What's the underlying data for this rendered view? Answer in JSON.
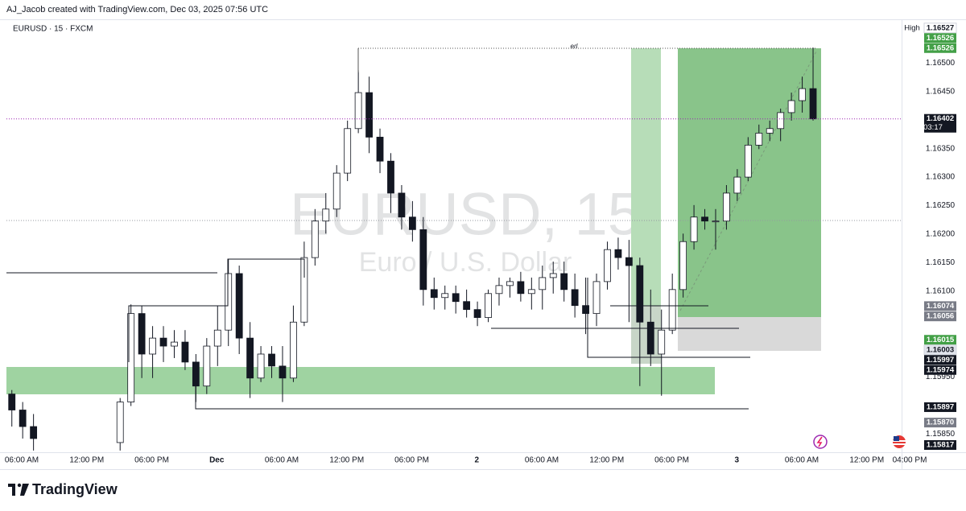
{
  "header": {
    "title": "AJ_Jacob created with TradingView.com, Dec 03, 2025 07:56 UTC"
  },
  "footer": {
    "brand": "TradingView"
  },
  "chart_data": {
    "type": "candlestick",
    "symbol": "EURUSD · 15 · FXCM",
    "watermark": "EURUSD, 15",
    "watermark_subtitle": "Euro / U.S. Dollar",
    "annotation": "erl",
    "up_color": "#ffffff",
    "down_color": "#131722",
    "ylim": [
      1.15818,
      1.16575
    ],
    "yticks": [
      {
        "value": 1.1585,
        "label": "1.15850"
      },
      {
        "value": 1.1595,
        "label": "1.15950"
      },
      {
        "value": 1.161,
        "label": "1.16100"
      },
      {
        "value": 1.1615,
        "label": "1.16150"
      },
      {
        "value": 1.162,
        "label": "1.16200"
      },
      {
        "value": 1.1625,
        "label": "1.16250"
      },
      {
        "value": 1.163,
        "label": "1.16300"
      },
      {
        "value": 1.1635,
        "label": "1.16350"
      },
      {
        "value": 1.1645,
        "label": "1.16450"
      },
      {
        "value": 1.165,
        "label": "1.16500"
      }
    ],
    "x_axis_labels": [
      "06:00 AM",
      "12:00 PM",
      "06:00 PM",
      "Dec",
      "06:00 AM",
      "12:00 PM",
      "06:00 PM",
      "2",
      "06:00 AM",
      "12:00 PM",
      "06:00 PM",
      "3",
      "06:00 AM",
      "12:00 PM",
      "04:00 PM"
    ],
    "candles": [
      [
        1.1592,
        1.15927,
        1.15863,
        1.15892
      ],
      [
        1.15892,
        1.15906,
        1.15842,
        1.15863
      ],
      [
        1.15863,
        1.15885,
        1.15821,
        1.15842
      ],
      null,
      null,
      null,
      null,
      null,
      null,
      null,
      [
        1.15835,
        1.15913,
        1.15821,
        1.15906
      ],
      [
        1.15906,
        1.16077,
        1.15899,
        1.16061
      ],
      [
        1.16061,
        1.16075,
        1.15948,
        1.1599
      ],
      [
        1.1599,
        1.16039,
        1.15948,
        1.16018
      ],
      [
        1.16018,
        1.16039,
        1.15976,
        1.16004
      ],
      [
        1.16004,
        1.16032,
        1.15983,
        1.16011
      ],
      [
        1.16011,
        1.16032,
        1.15962,
        1.15976
      ],
      [
        1.15976,
        1.1599,
        1.15906,
        1.15934
      ],
      [
        1.15934,
        1.16018,
        1.1592,
        1.16004
      ],
      [
        1.16004,
        1.16075,
        1.15969,
        1.16032
      ],
      [
        1.16032,
        1.16156,
        1.16004,
        1.16131
      ],
      [
        1.16131,
        1.16145,
        1.1599,
        1.16018
      ],
      [
        1.16018,
        1.16046,
        1.15913,
        1.15948
      ],
      [
        1.15948,
        1.16004,
        1.15941,
        1.1599
      ],
      [
        1.1599,
        1.16004,
        1.15948,
        1.15969
      ],
      [
        1.15969,
        1.16004,
        1.15906,
        1.15948
      ],
      [
        1.15948,
        1.16075,
        1.15941,
        1.16046
      ],
      [
        1.16046,
        1.16187,
        1.16039,
        1.16159
      ],
      [
        1.16159,
        1.16244,
        1.16145,
        1.16223
      ],
      [
        1.16223,
        1.16272,
        1.16201,
        1.16244
      ],
      [
        1.16244,
        1.16321,
        1.1623,
        1.16307
      ],
      [
        1.16307,
        1.16399,
        1.16293,
        1.16385
      ],
      [
        1.16385,
        1.16487,
        1.16377,
        1.16448
      ],
      [
        1.16448,
        1.16476,
        1.16342,
        1.1637
      ],
      [
        1.1637,
        1.16385,
        1.16307,
        1.16328
      ],
      [
        1.16328,
        1.16342,
        1.16237,
        1.16272
      ],
      [
        1.16272,
        1.16286,
        1.16208,
        1.1623
      ],
      [
        1.1623,
        1.16258,
        1.16187,
        1.16208
      ],
      [
        1.16208,
        1.1623,
        1.16075,
        1.16103
      ],
      [
        1.16103,
        1.16124,
        1.16068,
        1.16089
      ],
      [
        1.16089,
        1.1611,
        1.16068,
        1.16096
      ],
      [
        1.16096,
        1.1611,
        1.16061,
        1.16082
      ],
      [
        1.16082,
        1.16103,
        1.16054,
        1.16068
      ],
      [
        1.16068,
        1.16082,
        1.16039,
        1.16054
      ],
      [
        1.16054,
        1.16103,
        1.16046,
        1.16096
      ],
      [
        1.16096,
        1.16124,
        1.16075,
        1.1611
      ],
      [
        1.1611,
        1.16124,
        1.16089,
        1.16117
      ],
      [
        1.16117,
        1.16134,
        1.16082,
        1.16096
      ],
      [
        1.16096,
        1.16124,
        1.16068,
        1.16103
      ],
      [
        1.16103,
        1.16145,
        1.16068,
        1.16124
      ],
      [
        1.16124,
        1.16152,
        1.16096,
        1.16131
      ],
      [
        1.16131,
        1.16152,
        1.16082,
        1.16103
      ],
      [
        1.16103,
        1.16131,
        1.16054,
        1.16075
      ],
      [
        1.16075,
        1.16124,
        1.16025,
        1.16061
      ],
      [
        1.16061,
        1.16131,
        1.16039,
        1.16117
      ],
      [
        1.16117,
        1.16187,
        1.16103,
        1.16173
      ],
      [
        1.16173,
        1.16194,
        1.16138,
        1.16159
      ],
      [
        1.16159,
        1.1619,
        1.16046,
        1.16145
      ],
      [
        1.16145,
        1.16159,
        1.15934,
        1.16046
      ],
      [
        1.16046,
        1.16103,
        1.15969,
        1.1599
      ],
      [
        1.1599,
        1.16068,
        1.15917,
        1.16032
      ],
      [
        1.16032,
        1.16131,
        1.16025,
        1.16103
      ],
      [
        1.16103,
        1.16201,
        1.16089,
        1.16187
      ],
      [
        1.16187,
        1.16251,
        1.16173,
        1.1623
      ],
      [
        1.1623,
        1.16244,
        1.16208,
        1.16223
      ],
      [
        1.16223,
        1.16244,
        1.16173,
        1.16223
      ],
      [
        1.16223,
        1.16286,
        1.16208,
        1.16272
      ],
      [
        1.16272,
        1.16314,
        1.16258,
        1.163
      ],
      [
        1.163,
        1.1637,
        1.16293,
        1.16356
      ],
      [
        1.16356,
        1.16392,
        1.16349,
        1.16377
      ],
      [
        1.16377,
        1.16399,
        1.16363,
        1.16385
      ],
      [
        1.16385,
        1.1642,
        1.16363,
        1.16413
      ],
      [
        1.16413,
        1.16448,
        1.16399,
        1.16434
      ],
      [
        1.16434,
        1.16476,
        1.16413,
        1.16455
      ],
      [
        1.16455,
        1.16527,
        1.16399,
        1.16402
      ]
    ],
    "price_labels": [
      {
        "value": 1.16527,
        "label": "1.16527",
        "tag": "High",
        "color": "#ffffff"
      },
      {
        "value": 1.16526,
        "label": "1.16526",
        "color": "#43a047"
      },
      {
        "value": 1.16526,
        "label": "1.16526",
        "color": "#43a047"
      },
      {
        "value": 1.16402,
        "label": "1.16402",
        "countdown": "03:17",
        "color": "#131722"
      },
      {
        "value": 1.16074,
        "label": "1.16074",
        "color": "#787b86"
      },
      {
        "value": 1.16056,
        "label": "1.16056",
        "color": "#787b86"
      },
      {
        "value": 1.16015,
        "label": "1.16015",
        "color": "#43a047"
      },
      {
        "value": 1.16003,
        "label": "1.16003",
        "color": "#e0e3eb"
      },
      {
        "value": 1.15997,
        "label": "1.15997",
        "color": "#131722"
      },
      {
        "value": 1.15974,
        "label": "1.15974",
        "color": "#131722"
      },
      {
        "value": 1.15897,
        "label": "1.15897",
        "color": "#131722"
      },
      {
        "value": 1.1587,
        "label": "1.15870",
        "color": "#787b86"
      },
      {
        "value": 1.15817,
        "label": "1.15817",
        "color": "#131722"
      }
    ]
  }
}
